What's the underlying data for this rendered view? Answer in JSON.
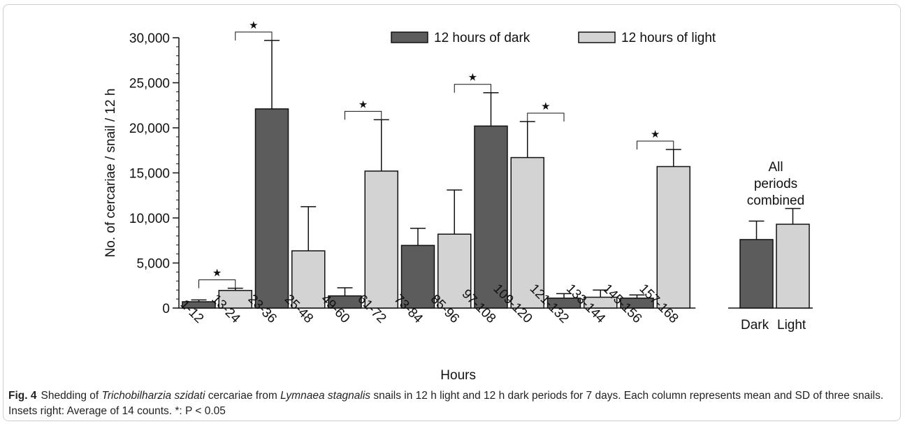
{
  "chart_data": [
    {
      "type": "bar",
      "title": "",
      "xlabel": "Hours",
      "ylabel": "No. of cercariae / snail / 12 h",
      "ylim": [
        0,
        30000
      ],
      "yticks": [
        0,
        5000,
        10000,
        15000,
        20000,
        25000,
        30000
      ],
      "ytick_labels": [
        "0",
        "5,000",
        "10,000",
        "15,000",
        "20,000",
        "25,000",
        "30,000"
      ],
      "legend_position": "top",
      "categories": [
        "1-12",
        "13-24",
        "23-36",
        "25-48",
        "49-60",
        "61-72",
        "73-84",
        "85-96",
        "97-108",
        "109-120",
        "121-132",
        "133-144",
        "145-156",
        "157-168"
      ],
      "values": [
        700,
        1950,
        22100,
        6350,
        1350,
        15200,
        6950,
        8200,
        20200,
        16700,
        1100,
        1200,
        1100,
        15700
      ],
      "errors": [
        200,
        250,
        7600,
        4900,
        900,
        5700,
        1900,
        4900,
        3700,
        4000,
        500,
        800,
        350,
        1900
      ],
      "bar_series": [
        "12 hours of dark",
        "12 hours of light",
        "12 hours of dark",
        "12 hours of light",
        "12 hours of dark",
        "12 hours of light",
        "12 hours of dark",
        "12 hours of light",
        "12 hours of dark",
        "12 hours of light",
        "12 hours of dark",
        "12 hours of light",
        "12 hours of dark",
        "12 hours of light"
      ],
      "series_colors": {
        "12 hours of dark": "#5c5c5c",
        "12 hours of light": "#d3d3d3"
      },
      "legend": [
        "12 hours of dark",
        "12 hours of light"
      ],
      "significance": [
        {
          "pair": [
            "1-12",
            "13-24"
          ],
          "mark": "★"
        },
        {
          "pair": [
            "13-24",
            "23-36"
          ],
          "mark": "★"
        },
        {
          "pair": [
            "49-60",
            "61-72"
          ],
          "mark": "★"
        },
        {
          "pair": [
            "85-96",
            "97-108"
          ],
          "mark": "★"
        },
        {
          "pair": [
            "109-120",
            "121-132"
          ],
          "mark": "★"
        },
        {
          "pair": [
            "145-156",
            "157-168"
          ],
          "mark": "★"
        }
      ]
    },
    {
      "type": "bar",
      "title": "All periods combined",
      "title_lines": [
        "All",
        "periods",
        "combined"
      ],
      "categories": [
        "Dark",
        "Light"
      ],
      "values": [
        7600,
        9300
      ],
      "errors": [
        2050,
        1750
      ],
      "bar_series": [
        "12 hours of dark",
        "12 hours of light"
      ]
    }
  ],
  "caption": {
    "fig_label": "Fig. 4",
    "part1": "Shedding of ",
    "species1": "Trichobilharzia szidati",
    "part2": " cercariae from ",
    "species2": "Lymnaea stagnalis",
    "part3": " snails in 12 h light and 12 h dark periods for 7 days. Each column represents mean and SD of three snails. Insets right: Average of 14 counts. *: P ˂ 0.05"
  }
}
